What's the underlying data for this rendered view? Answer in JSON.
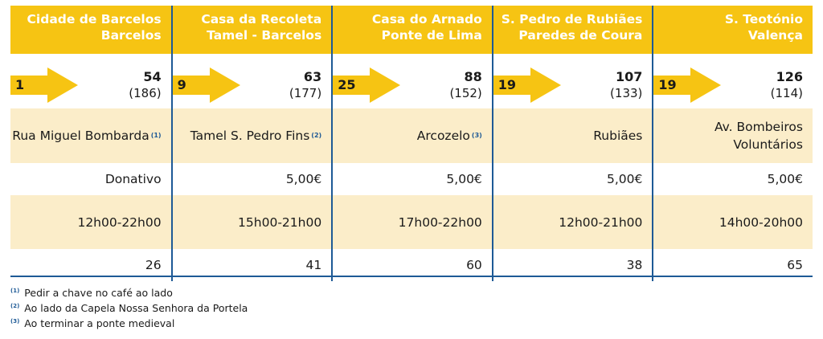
{
  "colors": {
    "header_yellow": "#f6c413",
    "row_tint": "#fbedc9",
    "divider_blue": "#1e5a96",
    "header_text": "#ffffff"
  },
  "columns": [
    {
      "name": "Cidade de Barcelos",
      "place": "Barcelos",
      "stage": "1",
      "km": "54",
      "km_remaining": "(186)",
      "location": "Rua Miguel Bombarda",
      "location_note": "(1)",
      "price": "Donativo",
      "hours": "12h00-22h00",
      "beds": "26"
    },
    {
      "name": "Casa da Recoleta",
      "place": "Tamel - Barcelos",
      "stage": "9",
      "km": "63",
      "km_remaining": "(177)",
      "location": "Tamel S. Pedro Fins",
      "location_note": "(2)",
      "price": "5,00€",
      "hours": "15h00-21h00",
      "beds": "41"
    },
    {
      "name": "Casa do Arnado",
      "place": "Ponte de Lima",
      "stage": "25",
      "km": "88",
      "km_remaining": "(152)",
      "location": "Arcozelo",
      "location_note": "(3)",
      "price": "5,00€",
      "hours": "17h00-22h00",
      "beds": "60"
    },
    {
      "name": "S. Pedro de Rubiães",
      "place": "Paredes de Coura",
      "stage": "19",
      "km": "107",
      "km_remaining": "(133)",
      "location": "Rubiães",
      "location_note": "",
      "price": "5,00€",
      "hours": "12h00-21h00",
      "beds": "38"
    },
    {
      "name": "S. Teotónio",
      "place": "Valença",
      "stage": "19",
      "km": "126",
      "km_remaining": "(114)",
      "location": "Av. Bombeiros",
      "location_line2": "Voluntários",
      "location_note": "",
      "price": "5,00€",
      "hours": "14h00-20h00",
      "beds": "65"
    }
  ],
  "footnotes": [
    {
      "mark": "(1)",
      "text": "Pedir a chave no café ao lado"
    },
    {
      "mark": "(2)",
      "text": "Ao lado da Capela Nossa Senhora da Portela"
    },
    {
      "mark": "(3)",
      "text": "Ao terminar a ponte medieval"
    }
  ]
}
